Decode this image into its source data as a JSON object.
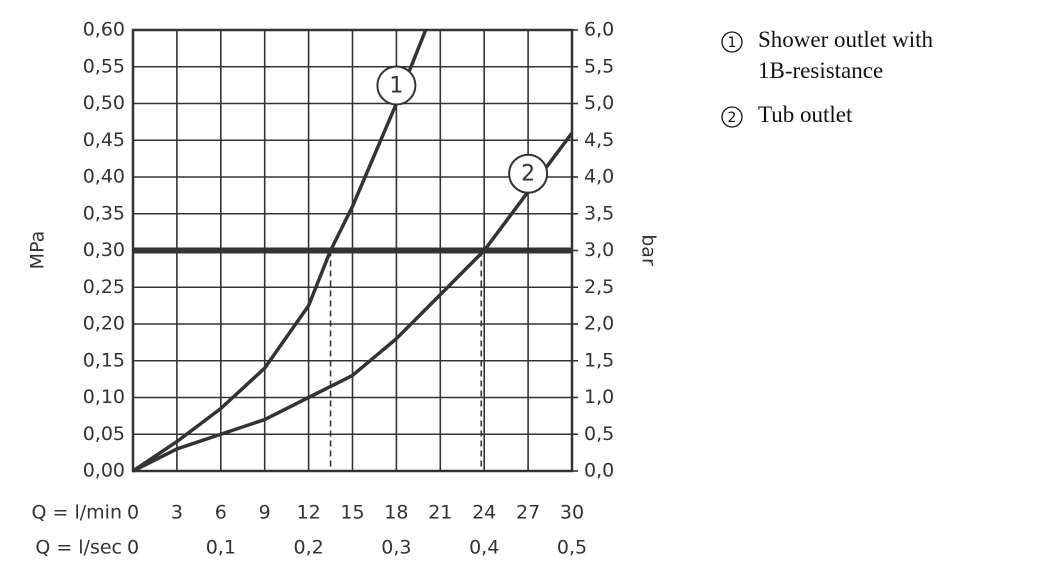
{
  "chart_data": {
    "type": "line",
    "x_label": "Q = l/min",
    "x2_label": "Q = l/sec",
    "y_label": "MPa",
    "y2_label": "bar",
    "xlim": [
      0,
      30
    ],
    "xticks": [
      0,
      3,
      6,
      9,
      12,
      15,
      18,
      21,
      24,
      27,
      30
    ],
    "x2lim": [
      0,
      0.5
    ],
    "x2ticks": [
      0,
      {
        "value": 0.1,
        "label": "0,1"
      },
      {
        "value": 0.2,
        "label": "0,2"
      },
      {
        "value": 0.3,
        "label": "0,3"
      },
      {
        "value": 0.4,
        "label": "0,4"
      },
      {
        "value": 0.5,
        "label": "0,5"
      }
    ],
    "ylim": [
      0,
      0.6
    ],
    "yticks": [
      {
        "value": 0,
        "label": "0,00"
      },
      {
        "value": 0.05,
        "label": "0,05"
      },
      {
        "value": 0.1,
        "label": "0,10"
      },
      {
        "value": 0.15,
        "label": "0,15"
      },
      {
        "value": 0.2,
        "label": "0,20"
      },
      {
        "value": 0.25,
        "label": "0,25"
      },
      {
        "value": 0.3,
        "label": "0,30"
      },
      {
        "value": 0.35,
        "label": "0,35"
      },
      {
        "value": 0.4,
        "label": "0,40"
      },
      {
        "value": 0.45,
        "label": "0,45"
      },
      {
        "value": 0.5,
        "label": "0,50"
      },
      {
        "value": 0.55,
        "label": "0,55"
      },
      {
        "value": 0.6,
        "label": "0,60"
      }
    ],
    "y2lim": [
      0,
      6
    ],
    "y2ticks": [
      {
        "value": 0,
        "label": "0,0"
      },
      {
        "value": 0.5,
        "label": "0,5"
      },
      {
        "value": 1,
        "label": "1,0"
      },
      {
        "value": 1.5,
        "label": "1,5"
      },
      {
        "value": 2,
        "label": "2,0"
      },
      {
        "value": 2.5,
        "label": "2,5"
      },
      {
        "value": 3,
        "label": "3,0"
      },
      {
        "value": 3.5,
        "label": "3,5"
      },
      {
        "value": 4,
        "label": "4,0"
      },
      {
        "value": 4.5,
        "label": "4,5"
      },
      {
        "value": 5,
        "label": "5,0"
      },
      {
        "value": 5.5,
        "label": "5,5"
      },
      {
        "value": 6,
        "label": "6,0"
      }
    ],
    "grid": true,
    "color": "#333333",
    "reference_line": 0.3,
    "drop_lines": [
      13.5,
      23.8
    ],
    "series": [
      {
        "name": "Shower outlet with 1B-resistance",
        "label": "1",
        "x": [
          0,
          3,
          6,
          9,
          12,
          13.5,
          15,
          18,
          20
        ],
        "values": [
          0,
          0.04,
          0.085,
          0.14,
          0.225,
          0.3,
          0.36,
          0.5,
          0.6
        ]
      },
      {
        "name": "Tub outlet",
        "label": "2",
        "x": [
          0,
          3,
          6,
          9,
          12,
          15,
          18,
          21,
          24,
          27,
          30
        ],
        "values": [
          0,
          0.03,
          0.05,
          0.07,
          0.1,
          0.13,
          0.18,
          0.24,
          0.3,
          0.38,
          0.46
        ]
      }
    ]
  }
}
